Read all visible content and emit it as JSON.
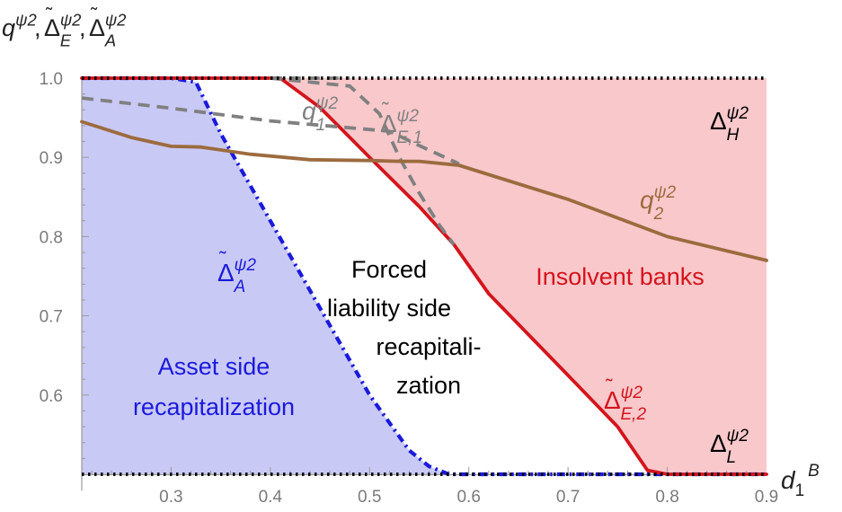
{
  "chart_data": {
    "type": "line",
    "title": "",
    "xlim": [
      0.21,
      0.9
    ],
    "ylim": [
      0.5,
      1.0
    ],
    "grid": false,
    "x_ticks": [
      "0.3",
      "0.4",
      "0.5",
      "0.6",
      "0.7",
      "0.8",
      "0.9"
    ],
    "y_ticks": [
      "0.6",
      "0.7",
      "0.8",
      "0.9",
      "1.0"
    ],
    "xlabel": {
      "base": "d",
      "sub": "1",
      "sup": "B"
    },
    "ylabel": [
      {
        "base": "q",
        "sup": "ψ2",
        "sub": "",
        "tilde": false
      },
      {
        "base": "Δ",
        "sup": "ψ2",
        "sub": "E",
        "tilde": true
      },
      {
        "base": "Δ",
        "sup": "ψ2",
        "sub": "A",
        "tilde": true
      }
    ],
    "regions": [
      {
        "text_lines": [
          "Asset side",
          "recapitalization"
        ],
        "color": "#1a1adb",
        "fill": "#c9c9f6"
      },
      {
        "text_lines": [
          "Forced",
          "liability side",
          "recapitali-",
          "zation"
        ],
        "color": "#000000",
        "fill": "#ffffff"
      },
      {
        "text_lines": [
          "Insolvent banks"
        ],
        "color": "#d4141c",
        "fill": "#f8c8cb"
      }
    ],
    "series": [
      {
        "label": {
          "base": "Δ",
          "sup": "ψ2",
          "sub": "H",
          "tilde": false
        },
        "color": "#000000",
        "dash": "dotted",
        "x": [
          0.21,
          0.9
        ],
        "y": [
          1.0,
          1.0
        ]
      },
      {
        "label": {
          "base": "Δ",
          "sup": "ψ2",
          "sub": "L",
          "tilde": false
        },
        "color": "#000000",
        "dash": "dotted",
        "x": [
          0.21,
          0.9
        ],
        "y": [
          0.5,
          0.5
        ]
      },
      {
        "label": {
          "base": "Δ",
          "sup": "ψ2",
          "sub": "A",
          "tilde": true
        },
        "color": "#1a1adb",
        "dash": "dashdot",
        "x": [
          0.21,
          0.3,
          0.325,
          0.35,
          0.4,
          0.45,
          0.5,
          0.54,
          0.56,
          0.58,
          0.6,
          0.7,
          0.8,
          0.9
        ],
        "y": [
          1.0,
          1.0,
          0.995,
          0.93,
          0.82,
          0.71,
          0.6,
          0.53,
          0.51,
          0.5,
          0.5,
          0.5,
          0.5,
          0.5
        ]
      },
      {
        "label": {
          "base": "Δ",
          "sup": "ψ2",
          "sub": "E,2",
          "tilde": true
        },
        "color": "#d4141c",
        "dash": "solid",
        "x": [
          0.21,
          0.41,
          0.45,
          0.5,
          0.55,
          0.585,
          0.62,
          0.7,
          0.75,
          0.78,
          0.8,
          0.9
        ],
        "y": [
          1.0,
          1.0,
          0.963,
          0.9,
          0.838,
          0.79,
          0.728,
          0.625,
          0.56,
          0.505,
          0.5,
          0.5
        ]
      },
      {
        "label": {
          "base": "Δ",
          "sup": "ψ2",
          "sub": "E,1",
          "tilde": true
        },
        "color": "#808080",
        "dash": "dashed",
        "x": [
          0.4,
          0.48,
          0.51,
          0.53,
          0.55,
          0.57,
          0.585
        ],
        "y": [
          1.0,
          0.99,
          0.955,
          0.9,
          0.855,
          0.815,
          0.79
        ]
      },
      {
        "label": {
          "base": "",
          "sup": "",
          "sub": "",
          "tilde": false
        },
        "color": "#808080",
        "dash": "dashed",
        "x": [
          0.21,
          0.3,
          0.4,
          0.52,
          0.55,
          0.59
        ],
        "y": [
          0.975,
          0.962,
          0.946,
          0.933,
          0.915,
          0.892
        ]
      },
      {
        "label": {
          "base": "q",
          "sup": "ψ2",
          "sub": "1",
          "tilde": false
        },
        "color": "#808080",
        "dash": "dashed",
        "x": [
          0.4,
          0.48
        ],
        "y": [
          1.0,
          1.0
        ]
      },
      {
        "label": {
          "base": "q",
          "sup": "ψ2",
          "sub": "2",
          "tilde": false
        },
        "color": "#9c6b3e",
        "dash": "solid",
        "x": [
          0.21,
          0.26,
          0.3,
          0.33,
          0.38,
          0.44,
          0.5,
          0.53,
          0.55,
          0.59,
          0.7,
          0.8,
          0.9
        ],
        "y": [
          0.945,
          0.925,
          0.914,
          0.913,
          0.904,
          0.897,
          0.896,
          0.895,
          0.895,
          0.89,
          0.847,
          0.8,
          0.77
        ]
      }
    ]
  }
}
